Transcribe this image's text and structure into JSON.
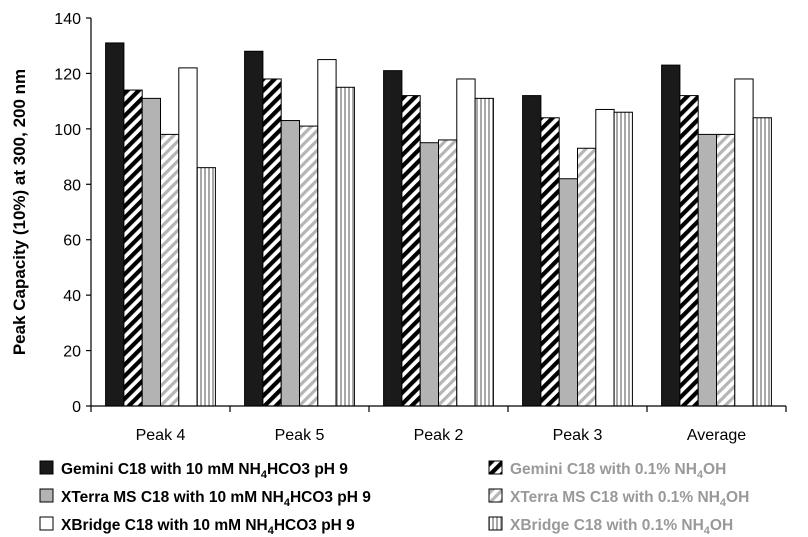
{
  "chart_data": {
    "type": "bar",
    "title": "",
    "xlabel": "",
    "ylabel": "Peak Capacity (10%) at 300, 200 nm",
    "ylim": [
      0,
      140
    ],
    "yticks": [
      0,
      20,
      40,
      60,
      80,
      100,
      120,
      140
    ],
    "categories": [
      "Peak 4",
      "Peak 5",
      "Peak 2",
      "Peak 3",
      "Average"
    ],
    "grid": false,
    "legend": "bottom",
    "series": [
      {
        "name": "Gemini C18 with 10 mM NH4HCO3 pH 9",
        "legend_parts": [
          [
            "Gemini C18 with 10 mM NH",
            false
          ],
          [
            "4",
            true
          ],
          [
            "HCO3 pH 9",
            false
          ]
        ],
        "values": [
          131,
          128,
          121,
          112,
          123
        ],
        "fill": "#1a1a1a",
        "pattern": "solid",
        "text_color": "#000000"
      },
      {
        "name": "Gemini C18 with 0.1% NH4OH",
        "legend_parts": [
          [
            "Gemini C18 with 0.1% NH",
            false
          ],
          [
            "4",
            true
          ],
          [
            "OH",
            false
          ]
        ],
        "values": [
          114,
          118,
          112,
          104,
          112
        ],
        "fill": "#000000",
        "pattern": "diag-black",
        "text_color": "#999999"
      },
      {
        "name": "XTerra MS C18 with 10 mM NH4HCO3 pH 9",
        "legend_parts": [
          [
            "XTerra MS C18 with 10 mM NH",
            false
          ],
          [
            "4",
            true
          ],
          [
            "HCO3 pH 9",
            false
          ]
        ],
        "values": [
          111,
          103,
          95,
          82,
          98
        ],
        "fill": "#b3b3b3",
        "pattern": "solid",
        "text_color": "#000000"
      },
      {
        "name": "XTerra MS C18 with 0.1% NH4OH",
        "legend_parts": [
          [
            "XTerra MS C18 with 0.1% NH",
            false
          ],
          [
            "4",
            true
          ],
          [
            "OH",
            false
          ]
        ],
        "values": [
          98,
          101,
          96,
          93,
          98
        ],
        "fill": "#bbbbbb",
        "pattern": "diag-grey",
        "text_color": "#999999"
      },
      {
        "name": "XBridge C18 with 10 mM NH4HCO3 pH 9",
        "legend_parts": [
          [
            "XBridge C18 with 10 mM NH",
            false
          ],
          [
            "4",
            true
          ],
          [
            "HCO3 pH 9",
            false
          ]
        ],
        "values": [
          122,
          125,
          118,
          107,
          118
        ],
        "fill": "#ffffff",
        "pattern": "solid",
        "text_color": "#000000"
      },
      {
        "name": "XBridge C18 with 0.1% NH4OH",
        "legend_parts": [
          [
            "XBridge C18 with 0.1% NH",
            false
          ],
          [
            "4",
            true
          ],
          [
            "OH",
            false
          ]
        ],
        "values": [
          86,
          115,
          111,
          106,
          104
        ],
        "fill": "#aaaaaa",
        "pattern": "vert-grey",
        "text_color": "#999999"
      }
    ]
  }
}
